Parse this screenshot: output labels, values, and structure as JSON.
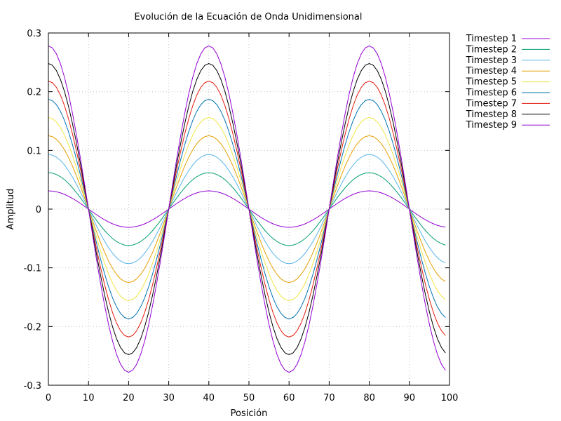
{
  "chart_data": {
    "type": "line",
    "title": "Evolución de la Ecuación de Onda Unidimensional",
    "xlabel": "Posición",
    "ylabel": "Amplitud",
    "xlim": [
      0,
      100
    ],
    "ylim": [
      -0.3,
      0.3
    ],
    "x_ticks": [
      "0",
      "10",
      "20",
      "30",
      "40",
      "50",
      "60",
      "70",
      "80",
      "90",
      "100"
    ],
    "y_ticks": [
      "-0.3",
      "-0.2",
      "-0.1",
      "0",
      "0.1",
      "0.2",
      "0.3"
    ],
    "grid": true,
    "legend_position": "outside-top-right",
    "x": [
      0,
      1,
      2,
      3,
      4,
      5,
      6,
      7,
      8,
      9,
      10,
      11,
      12,
      13,
      14,
      15,
      16,
      17,
      18,
      19,
      20,
      21,
      22,
      23,
      24,
      25,
      26,
      27,
      28,
      29,
      30,
      31,
      32,
      33,
      34,
      35,
      36,
      37,
      38,
      39,
      40,
      41,
      42,
      43,
      44,
      45,
      46,
      47,
      48,
      49,
      50,
      51,
      52,
      53,
      54,
      55,
      56,
      57,
      58,
      59,
      60,
      61,
      62,
      63,
      64,
      65,
      66,
      67,
      68,
      69,
      70,
      71,
      72,
      73,
      74,
      75,
      76,
      77,
      78,
      79,
      80,
      81,
      82,
      83,
      84,
      85,
      86,
      87,
      88,
      89,
      90,
      91,
      92,
      93,
      94,
      95,
      96,
      97,
      98,
      99
    ],
    "series": [
      {
        "name": "Timestep 1",
        "color": "#9400d3",
        "amplitude": 0.031,
        "shape": "cos(2*pi*x/40)"
      },
      {
        "name": "Timestep 2",
        "color": "#009e73",
        "amplitude": 0.062,
        "shape": "cos(2*pi*x/40)"
      },
      {
        "name": "Timestep 3",
        "color": "#56b4e9",
        "amplitude": 0.093,
        "shape": "cos(2*pi*x/40)"
      },
      {
        "name": "Timestep 4",
        "color": "#e69f00",
        "amplitude": 0.125,
        "shape": "cos(2*pi*x/40)"
      },
      {
        "name": "Timestep 5",
        "color": "#f0e442",
        "amplitude": 0.156,
        "shape": "cos(2*pi*x/40)"
      },
      {
        "name": "Timestep 6",
        "color": "#0072b2",
        "amplitude": 0.187,
        "shape": "cos(2*pi*x/40)"
      },
      {
        "name": "Timestep 7",
        "color": "#e51e10",
        "amplitude": 0.218,
        "shape": "cos(2*pi*x/40)"
      },
      {
        "name": "Timestep 8",
        "color": "#000000",
        "amplitude": 0.248,
        "shape": "cos(2*pi*x/40)"
      },
      {
        "name": "Timestep 9",
        "color": "#9400d3",
        "amplitude": 0.278,
        "shape": "cos(2*pi*x/40)"
      }
    ]
  }
}
